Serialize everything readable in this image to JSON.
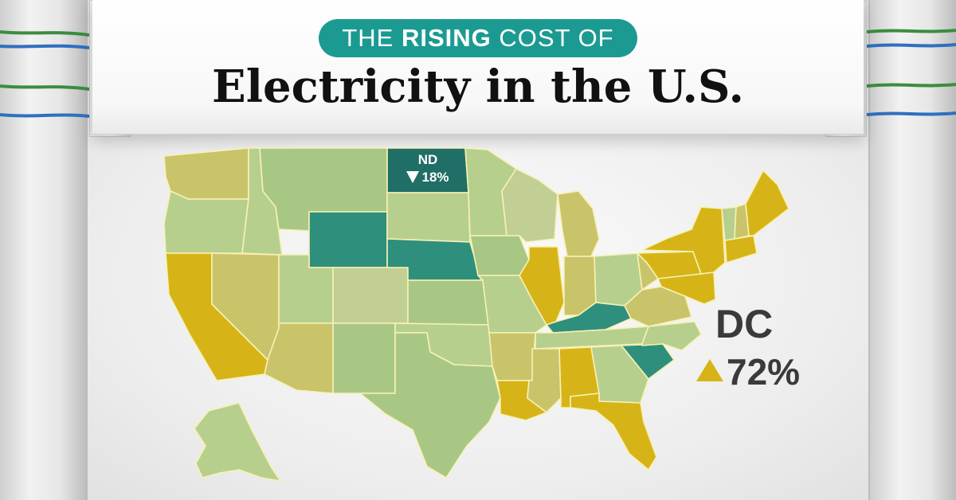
{
  "title": {
    "pre": "THE",
    "highlight": "RISING",
    "post": "COST OF",
    "main": "Electricity in the U.S."
  },
  "callouts": {
    "nd": {
      "state": "ND",
      "change": "18%",
      "direction": "down"
    },
    "dc": {
      "state": "DC",
      "change": "72%",
      "direction": "up"
    }
  },
  "colors": {
    "accent": "#1b9a92",
    "increase_high": "#d6b418",
    "increase_mid": "#c9c46a",
    "increase_low": "#b7cf8d",
    "decrease": "#2f8f7d",
    "decrease_strong": "#1f6f66"
  },
  "icons": [
    "triangle-down-icon",
    "triangle-up-icon"
  ]
}
